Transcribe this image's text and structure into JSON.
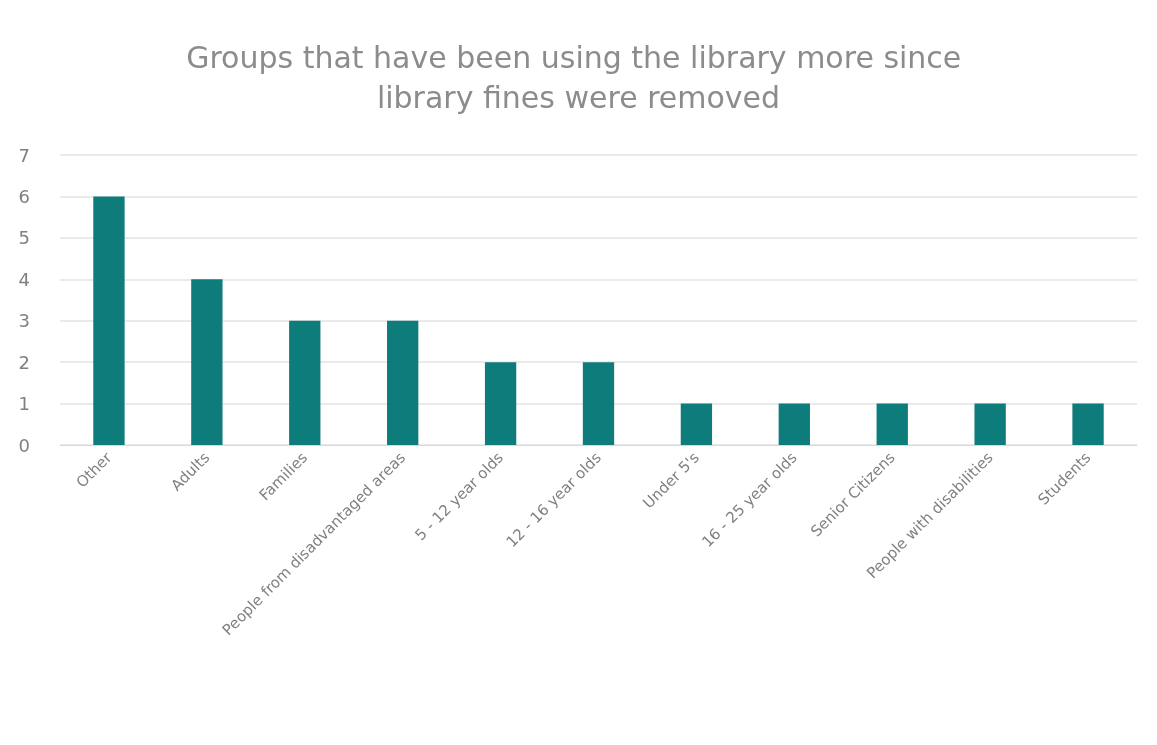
{
  "chart_data": {
    "type": "bar",
    "title": "Groups that have been using the library more since library fines were removed",
    "categories": [
      "Other",
      "Adults",
      "Families",
      "People from disadvantaged areas",
      "5 - 12 year olds",
      "12 - 16 year olds",
      "Under 5's",
      "16 - 25 year olds",
      "Senior Citizens",
      "People with disabilities",
      "Students"
    ],
    "values": [
      6,
      4,
      3,
      3,
      2,
      2,
      1,
      1,
      1,
      1,
      1
    ],
    "color": "#0e7c7b",
    "ylim": [
      0,
      7
    ],
    "yticks": [
      0,
      1,
      2,
      3,
      4,
      5,
      6,
      7
    ],
    "grid": "y"
  }
}
